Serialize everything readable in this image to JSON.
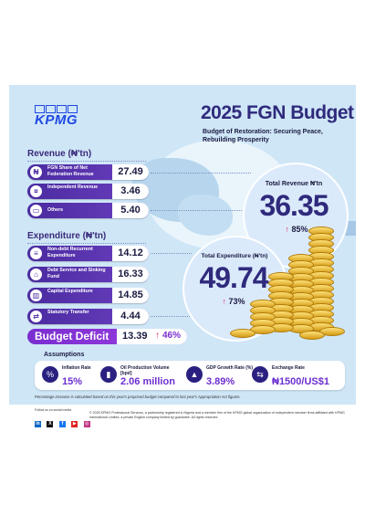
{
  "brand": {
    "logo_text": "KPMG"
  },
  "header": {
    "title": "2025 FGN Budget",
    "subtitle": "Budget of Restoration: Securing Peace, Rebuilding Prosperity"
  },
  "revenue": {
    "title": "Revenue (₦'tn)",
    "items": [
      {
        "label": "FGN Share of Net Federation Revenue",
        "value": "27.49"
      },
      {
        "label": "Independent Revenue",
        "value": "3.46"
      },
      {
        "label": "Others",
        "value": "5.40"
      }
    ],
    "total_label": "Total Revenue ₦'tn",
    "total_value": "36.35",
    "total_change": "85%"
  },
  "expenditure": {
    "title": "Expenditure (₦'tn)",
    "items": [
      {
        "label": "Non-debt Recurrent Expenditure",
        "value": "14.12"
      },
      {
        "label": "Debt Service and Sinking Fund",
        "value": "16.33"
      },
      {
        "label": "Capital Expenditure",
        "value": "14.85"
      },
      {
        "label": "Statutory Transfer",
        "value": "4.44"
      }
    ],
    "total_label": "Total Expenditure (₦'tn)",
    "total_value": "49.74",
    "total_change": "73%"
  },
  "deficit": {
    "label": "Budget Deficit",
    "value": "13.39",
    "change": "46%"
  },
  "assumptions": {
    "title": "Assumptions",
    "items": [
      {
        "icon": "inflation-icon",
        "label": "Inflation Rate",
        "value": "15%"
      },
      {
        "icon": "oil-barrel-icon",
        "label": "Oil Production Volume [bpd]",
        "value": "2.06 million"
      },
      {
        "icon": "gdp-chart-icon",
        "label": "GDP Growth Rate (%)",
        "value": "3.89%"
      },
      {
        "icon": "exchange-rate-icon",
        "label": "Exchange Rate",
        "value": "₦1500/US$1"
      }
    ]
  },
  "footnote": "Percentage increase is calculated based on this year's proposed budget compared to last year's Appropriation Act figures.",
  "footer": {
    "social_title": "Follow us on social media",
    "social": [
      "in",
      "X",
      "f",
      "▶",
      "◎"
    ],
    "legal": "© 2025 KPMG Professional Services, a partnership registered in Nigeria and a member firm of the KPMG global organization of independent member firms affiliated with KPMG International Limited, a private English company limited by guarantee. All rights reserved."
  }
}
